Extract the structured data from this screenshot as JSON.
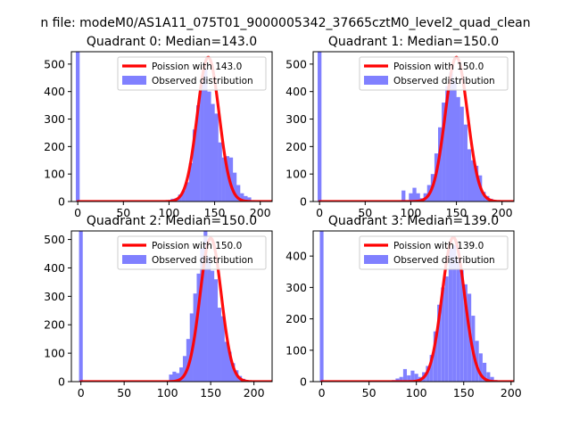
{
  "figure": {
    "suptitle": "n file: modeM0/AS1A11_075T01_9000005342_37665cztM0_level2_quad_clean"
  },
  "legend": {
    "line_prefix": "Poission with",
    "bar_label": "Observed distribution"
  },
  "colors": {
    "line": "#ff0000",
    "bars": "#8080ff",
    "axis": "#000000",
    "background": "#ffffff"
  },
  "chart_data": [
    {
      "type": "bar",
      "title": "Quadrant 0: Median=143.0",
      "legend_line": "Poission with 143.0",
      "legend_bar": "Observed distribution",
      "legend_position": "top-right",
      "grid": false,
      "xlim": [
        -7,
        213
      ],
      "ylim": [
        0,
        545
      ],
      "xticks": [
        0,
        50,
        100,
        150,
        200
      ],
      "yticks": [
        0,
        100,
        200,
        300,
        400,
        500
      ],
      "median": 143.0,
      "poisson_peak": 525,
      "bin_width": 4.2,
      "observed": {
        "x": [
          0,
          92,
          96,
          100,
          104,
          108,
          112,
          116,
          120,
          124,
          128,
          132,
          136,
          140,
          144,
          148,
          152,
          156,
          160,
          164,
          168,
          172,
          176,
          180,
          184,
          188,
          192,
          196,
          200
        ],
        "y": [
          545,
          0,
          2,
          3,
          10,
          12,
          25,
          40,
          70,
          140,
          262,
          350,
          440,
          480,
          400,
          355,
          320,
          215,
          160,
          165,
          160,
          105,
          60,
          30,
          20,
          15,
          5,
          2,
          1
        ]
      }
    },
    {
      "type": "bar",
      "title": "Quadrant 1: Median=150.0",
      "legend_line": "Poission with 150.0",
      "legend_bar": "Observed distribution",
      "legend_position": "top-right",
      "grid": false,
      "xlim": [
        -7,
        213
      ],
      "ylim": [
        0,
        545
      ],
      "xticks": [
        0,
        50,
        100,
        150,
        200
      ],
      "yticks": [
        0,
        100,
        200,
        300,
        400,
        500
      ],
      "median": 150.0,
      "poisson_peak": 525,
      "bin_width": 4.2,
      "observed": {
        "x": [
          0,
          84,
          88,
          92,
          96,
          100,
          104,
          108,
          112,
          116,
          120,
          124,
          128,
          132,
          136,
          140,
          144,
          148,
          152,
          156,
          160,
          164,
          168,
          172,
          176,
          180,
          184,
          188,
          192,
          196,
          200
        ],
        "y": [
          545,
          2,
          3,
          40,
          5,
          30,
          50,
          30,
          12,
          30,
          60,
          100,
          175,
          270,
          360,
          420,
          470,
          440,
          380,
          345,
          280,
          190,
          150,
          130,
          95,
          35,
          20,
          10,
          5,
          2,
          1
        ]
      }
    },
    {
      "type": "bar",
      "title": "Quadrant 2: Median=150.0",
      "legend_line": "Poission with 150.0",
      "legend_bar": "Observed distribution",
      "legend_position": "top-right",
      "grid": false,
      "xlim": [
        -11,
        221
      ],
      "ylim": [
        0,
        530
      ],
      "xticks": [
        0,
        50,
        100,
        150,
        200
      ],
      "yticks": [
        0,
        100,
        200,
        300,
        400,
        500
      ],
      "median": 150.0,
      "poisson_peak": 505,
      "bin_width": 4.3,
      "observed": {
        "x": [
          0,
          100,
          104,
          108,
          112,
          116,
          120,
          124,
          128,
          132,
          136,
          140,
          144,
          148,
          152,
          156,
          160,
          164,
          168,
          172,
          176,
          180,
          184,
          188,
          192,
          196,
          200,
          204,
          208
        ],
        "y": [
          530,
          2,
          25,
          35,
          30,
          50,
          90,
          150,
          240,
          310,
          380,
          470,
          530,
          440,
          390,
          360,
          260,
          230,
          140,
          105,
          65,
          40,
          20,
          10,
          5,
          2,
          1,
          1,
          0
        ]
      }
    },
    {
      "type": "bar",
      "title": "Quadrant 3: Median=139.0",
      "legend_line": "Poission with 139.0",
      "legend_bar": "Observed distribution",
      "legend_position": "top-right",
      "grid": false,
      "xlim": [
        -9,
        203
      ],
      "ylim": [
        0,
        480
      ],
      "xticks": [
        0,
        50,
        100,
        150,
        200
      ],
      "yticks": [
        0,
        100,
        200,
        300,
        400
      ],
      "median": 139.0,
      "poisson_peak": 460,
      "bin_width": 3.9,
      "observed": {
        "x": [
          0,
          72,
          76,
          80,
          84,
          88,
          92,
          96,
          100,
          104,
          108,
          112,
          116,
          120,
          124,
          128,
          132,
          136,
          140,
          144,
          148,
          152,
          156,
          160,
          164,
          168,
          172,
          176,
          180,
          184,
          188
        ],
        "y": [
          480,
          3,
          5,
          10,
          15,
          40,
          20,
          35,
          25,
          15,
          30,
          50,
          85,
          160,
          245,
          300,
          335,
          425,
          435,
          390,
          355,
          310,
          280,
          210,
          130,
          90,
          60,
          30,
          15,
          5,
          2
        ]
      }
    }
  ]
}
